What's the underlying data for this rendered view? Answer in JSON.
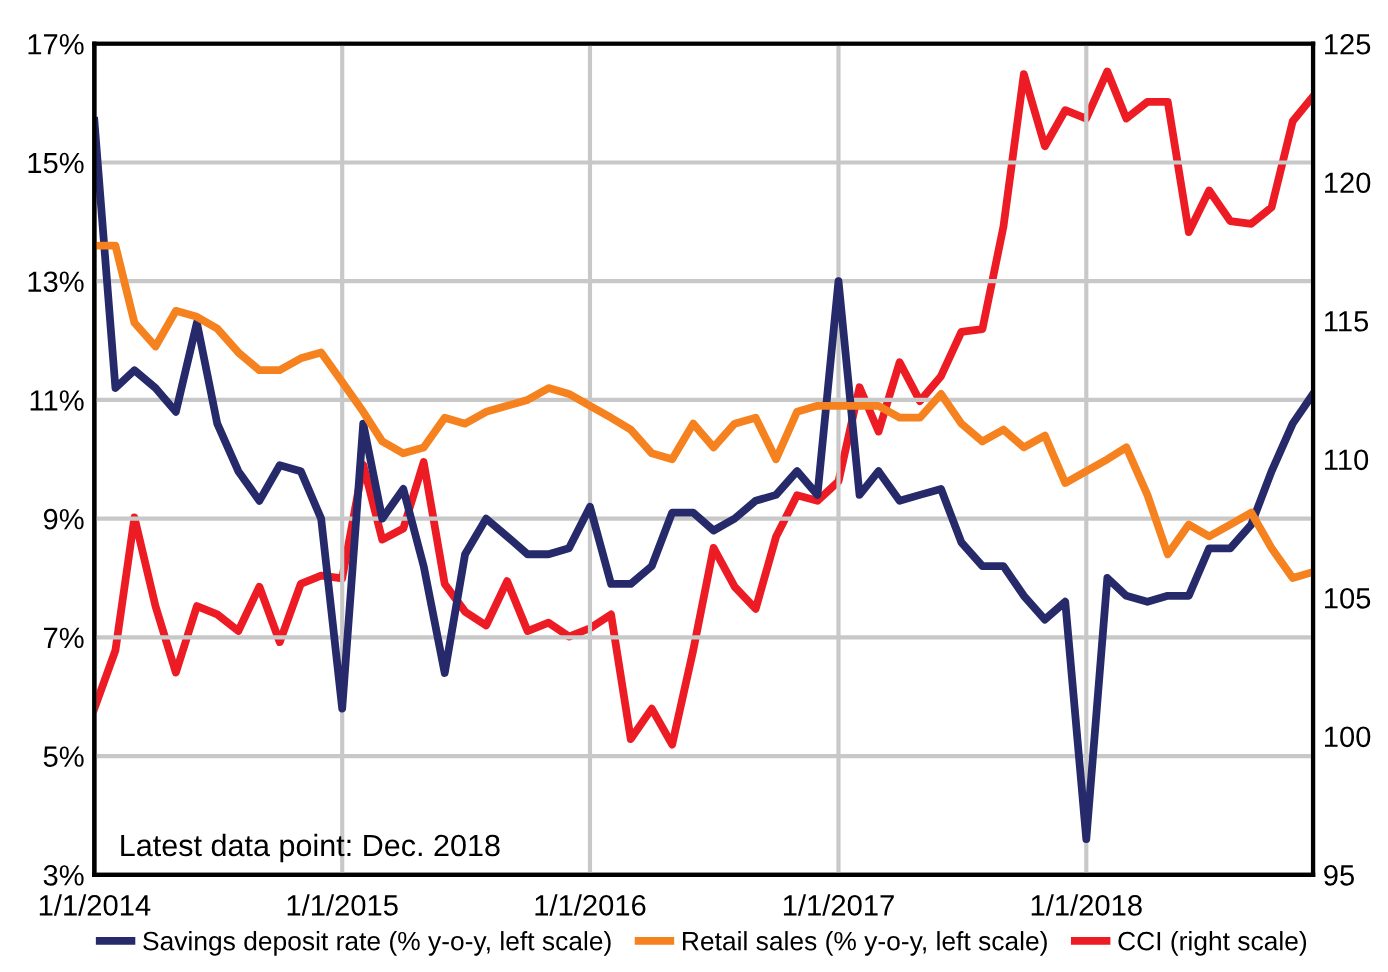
{
  "chart_data": {
    "type": "line",
    "x": [
      "2014-01",
      "2014-02",
      "2014-03",
      "2014-04",
      "2014-05",
      "2014-06",
      "2014-07",
      "2014-08",
      "2014-09",
      "2014-10",
      "2014-11",
      "2014-12",
      "2015-01",
      "2015-02",
      "2015-03",
      "2015-04",
      "2015-05",
      "2015-06",
      "2015-07",
      "2015-08",
      "2015-09",
      "2015-10",
      "2015-11",
      "2015-12",
      "2016-01",
      "2016-02",
      "2016-03",
      "2016-04",
      "2016-05",
      "2016-06",
      "2016-07",
      "2016-08",
      "2016-09",
      "2016-10",
      "2016-11",
      "2016-12",
      "2017-01",
      "2017-02",
      "2017-03",
      "2017-04",
      "2017-05",
      "2017-06",
      "2017-07",
      "2017-08",
      "2017-09",
      "2017-10",
      "2017-11",
      "2017-12",
      "2018-01",
      "2018-02",
      "2018-03",
      "2018-04",
      "2018-05",
      "2018-06",
      "2018-07",
      "2018-08",
      "2018-09",
      "2018-10",
      "2018-11",
      "2018-12"
    ],
    "series": [
      {
        "name": "Savings deposit rate (% y-o-y, left scale)",
        "color": "#262a6b",
        "values": [
          15.7,
          11.2,
          11.5,
          11.2,
          10.8,
          12.3,
          10.6,
          9.8,
          9.3,
          9.9,
          9.8,
          9.0,
          5.8,
          10.6,
          9.0,
          9.5,
          8.2,
          6.4,
          8.4,
          9.0,
          8.7,
          8.4,
          8.4,
          8.5,
          9.2,
          7.9,
          7.9,
          8.2,
          9.1,
          9.1,
          8.8,
          9.0,
          9.3,
          9.4,
          9.8,
          9.4,
          13.0,
          9.4,
          9.8,
          9.3,
          9.4,
          9.5,
          8.6,
          8.2,
          8.2,
          7.7,
          7.3,
          7.6,
          3.6,
          8.0,
          7.7,
          7.6,
          7.7,
          7.7,
          8.5,
          8.5,
          8.9,
          9.8,
          10.6,
          11.1
        ]
      },
      {
        "name": "Retail sales (% y-o-y, left scale)",
        "color": "#f5821f",
        "values": [
          13.6,
          13.6,
          12.3,
          11.9,
          12.5,
          12.4,
          12.2,
          11.8,
          11.5,
          11.5,
          11.7,
          11.8,
          11.3,
          10.8,
          10.3,
          10.1,
          10.2,
          10.7,
          10.6,
          10.8,
          10.9,
          11.0,
          11.2,
          11.1,
          10.9,
          10.7,
          10.5,
          10.1,
          10.0,
          10.6,
          10.2,
          10.6,
          10.7,
          10.0,
          10.8,
          10.9,
          10.9,
          10.9,
          10.9,
          10.7,
          10.7,
          11.1,
          10.6,
          10.3,
          10.5,
          10.2,
          10.4,
          9.6,
          9.8,
          10.0,
          10.2,
          9.4,
          8.4,
          8.9,
          8.7,
          8.9,
          9.1,
          8.5,
          8.0,
          8.1
        ]
      },
      {
        "name": "CCI (right scale)",
        "color": "#ed1c24",
        "axis": "y2",
        "values": [
          101.0,
          103.1,
          107.9,
          104.7,
          102.3,
          104.7,
          104.4,
          103.8,
          105.4,
          103.4,
          105.5,
          105.8,
          105.7,
          109.8,
          107.1,
          107.5,
          109.9,
          105.5,
          104.5,
          104.0,
          105.6,
          103.8,
          104.1,
          103.6,
          103.9,
          104.4,
          99.9,
          101.0,
          99.7,
          103.1,
          106.8,
          105.4,
          104.6,
          107.2,
          108.7,
          108.5,
          109.2,
          112.6,
          111.0,
          113.5,
          112.1,
          113.0,
          114.6,
          114.7,
          118.4,
          123.9,
          121.3,
          122.6,
          122.3,
          124.0,
          122.3,
          122.9,
          122.9,
          118.2,
          119.7,
          118.6,
          118.5,
          119.1,
          122.2,
          123.1
        ]
      }
    ],
    "xlim": [
      "2014-01",
      "2018-12"
    ],
    "xticks": [
      {
        "value": "2014-01",
        "label": "1/1/2014"
      },
      {
        "value": "2015-01",
        "label": "1/1/2015"
      },
      {
        "value": "2016-01",
        "label": "1/1/2016"
      },
      {
        "value": "2017-01",
        "label": "1/1/2017"
      },
      {
        "value": "2018-01",
        "label": "1/1/2018"
      }
    ],
    "ylim": [
      3,
      17
    ],
    "yticks": [
      {
        "value": 3,
        "label": "3%"
      },
      {
        "value": 5,
        "label": "5%"
      },
      {
        "value": 7,
        "label": "7%"
      },
      {
        "value": 9,
        "label": "9%"
      },
      {
        "value": 11,
        "label": "11%"
      },
      {
        "value": 13,
        "label": "13%"
      },
      {
        "value": 15,
        "label": "15%"
      },
      {
        "value": 17,
        "label": "17%"
      }
    ],
    "y2lim": [
      95,
      125
    ],
    "y2ticks": [
      95,
      100,
      105,
      110,
      115,
      120,
      125
    ],
    "grid": true,
    "legend": "bottom",
    "line_style": "solid",
    "marker": "none",
    "annotations": [
      "Latest data point: Dec. 2018"
    ]
  }
}
